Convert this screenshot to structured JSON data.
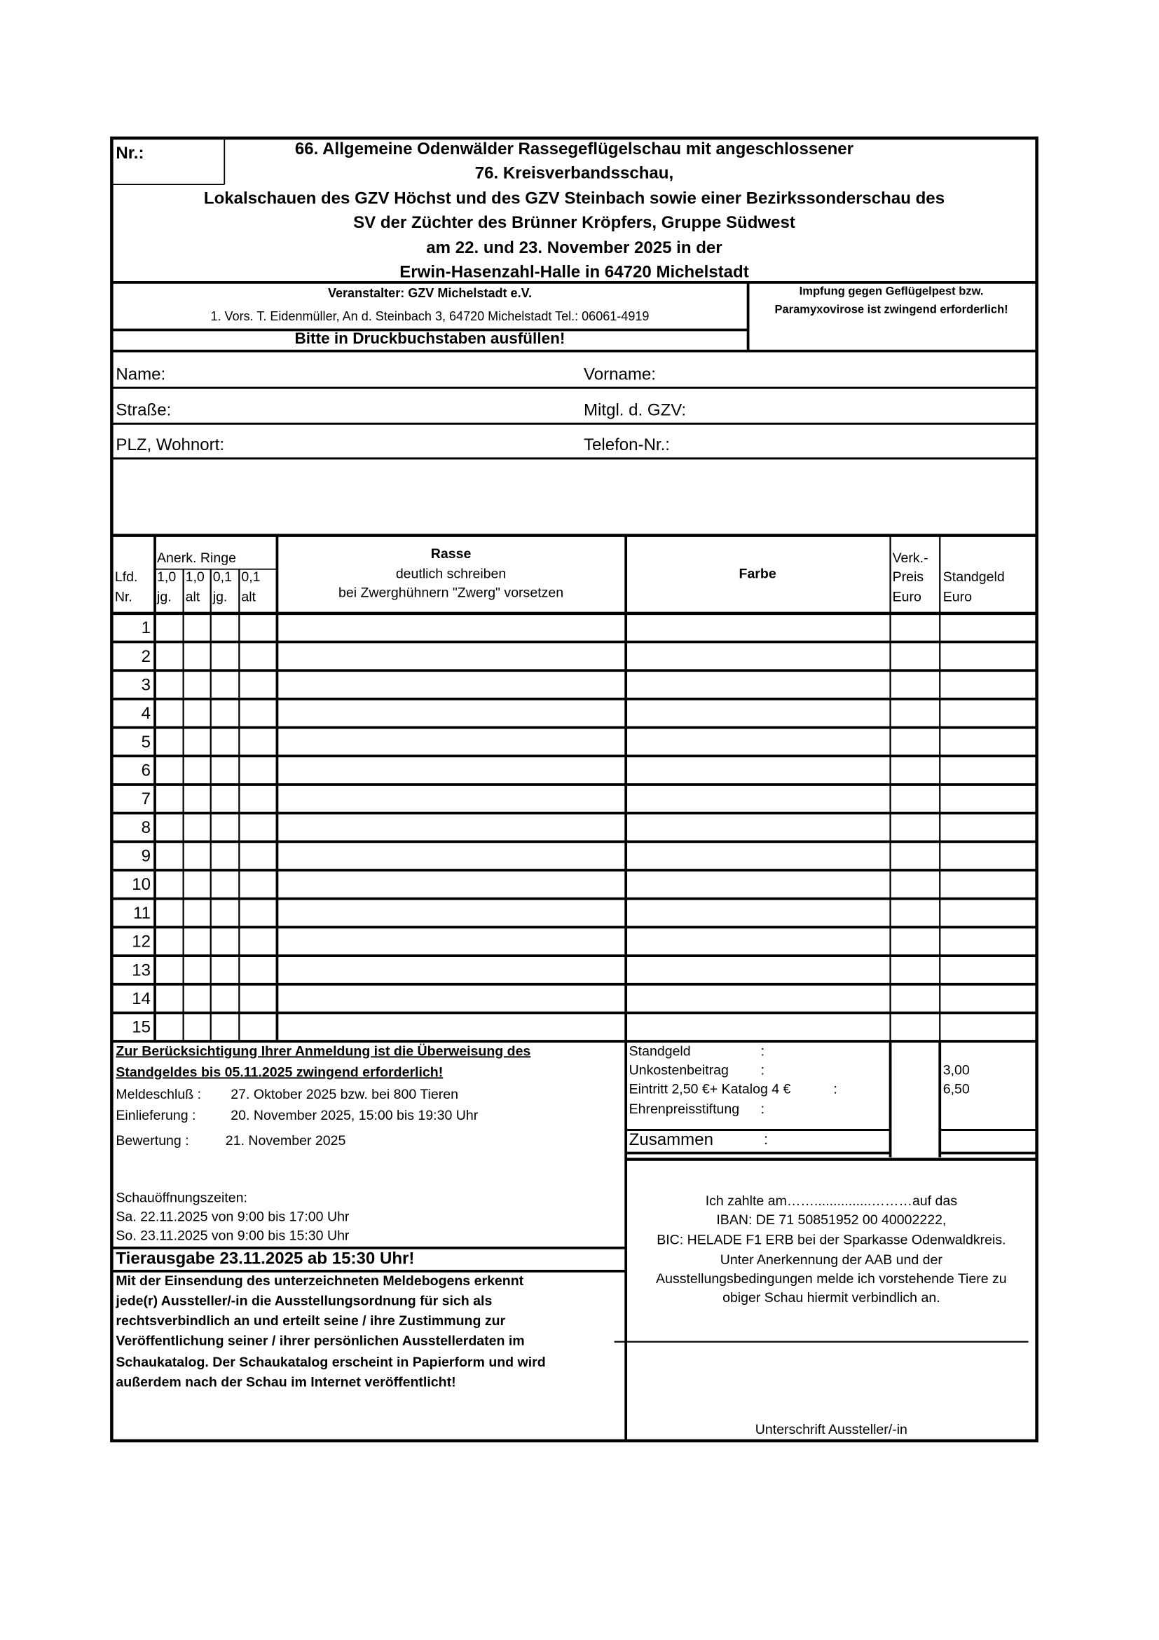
{
  "header": {
    "nr_label": "Nr.:",
    "title_lines": [
      "66. Allgemeine Odenwälder Rassegeflügelschau mit angeschlossener",
      "76. Kreisverbandsschau,",
      "Lokalschauen des GZV Höchst und des GZV Steinbach sowie einer Bezirkssonderschau des",
      "SV der Züchter des Brünner Kröpfers, Gruppe Südwest",
      "am 22. und 23. November 2025 in der",
      "Erwin-Hasenzahl-Halle in 64720 Michelstadt"
    ]
  },
  "organizer": {
    "name": "Veranstalter: GZV Michelstadt e.V.",
    "chair": "1. Vors. T. Eidenmüller, An d. Steinbach 3, 64720 Michelstadt Tel.: 06061-4919",
    "instruction": "Bitte in Druckbuchstaben ausfüllen!",
    "vaccination": [
      "Impfung gegen Geflügelpest bzw.",
      "Paramyxovirose ist zwingend erforderlich!"
    ]
  },
  "personal_fields": [
    [
      "Name:",
      "Vorname:"
    ],
    [
      "Straße:",
      "Mitgl. d. GZV:"
    ],
    [
      "PLZ, Wohnort:",
      "Telefon-Nr.:"
    ]
  ],
  "table": {
    "headers": {
      "lfd": [
        "Lfd.",
        "Nr."
      ],
      "rings_title": "Anerk. Ringe",
      "rings": [
        [
          "1,0",
          "jg."
        ],
        [
          "1,0",
          "alt"
        ],
        [
          "0,1",
          "jg."
        ],
        [
          "0,1",
          "alt"
        ]
      ],
      "breed": [
        "Rasse",
        "deutlich schreiben",
        "bei Zwerghühnern \"Zwerg\" vorsetzen"
      ],
      "color": "Farbe",
      "sale": [
        "Verk.-",
        "Preis",
        "Euro"
      ],
      "fee": [
        "Standgeld",
        "Euro"
      ]
    },
    "rows": [
      "1",
      "2",
      "3",
      "4",
      "5",
      "6",
      "7",
      "8",
      "9",
      "10",
      "11",
      "12",
      "13",
      "14",
      "15"
    ]
  },
  "notes": {
    "transfer": [
      "Zur Berücksichtigung Ihrer Anmeldung ist die Überweisung des",
      "Standgeldes bis 05.11.2025 zwingend erforderlich!"
    ],
    "dates": [
      [
        "Meldeschluß  :",
        "27. Oktober 2025 bzw. bei 800 Tieren"
      ],
      [
        "Einlieferung  :",
        "20. November 2025, 15:00 bis 19:30 Uhr"
      ],
      [
        "Bewertung   :",
        "21. November 2025"
      ]
    ],
    "opening": [
      "Schauöffnungszeiten:",
      "Sa. 22.11.2025 von 9:00 bis 17:00 Uhr",
      "So. 23.11.2025 von 9:00 bis 15:30 Uhr"
    ],
    "release": "Tierausgabe 23.11.2025 ab 15:30 Uhr!",
    "consent": [
      "Mit der Einsendung des unterzeichneten Meldebogens erkennt",
      "jede(r) Aussteller/-in die Ausstellungsordnung für sich als",
      "rechtsverbindlich an und erteilt seine / ihre Zustimmung zur",
      "Veröffentlichung seiner / ihrer persönlichen Ausstellerdaten im",
      "Schaukatalog. Der Schaukatalog erscheint in Papierform und wird",
      "außerdem nach der Schau im Internet veröffentlicht!"
    ]
  },
  "fees": {
    "items": [
      [
        "Standgeld",
        ":",
        ""
      ],
      [
        "Unkostenbeitrag",
        ":",
        "3,00"
      ],
      [
        "Eintritt 2,50 €+ Katalog 4 €",
        ":",
        "6,50"
      ],
      [
        "Ehrenpreisstiftung",
        ":",
        ""
      ]
    ],
    "total": [
      "Zusammen",
      ":"
    ]
  },
  "payment": {
    "lines": [
      "Ich zahlte am……...............………auf das",
      "IBAN: DE 71 50851952 00 40002222,",
      "BIC: HELADE F1 ERB bei der Sparkasse Odenwaldkreis.",
      "Unter Anerkennung der AAB und der",
      "Ausstellungsbedingungen melde ich vorstehende Tiere zu",
      "obiger Schau hiermit verbindlich an."
    ],
    "signature": "Unterschrift Aussteller/-in"
  }
}
